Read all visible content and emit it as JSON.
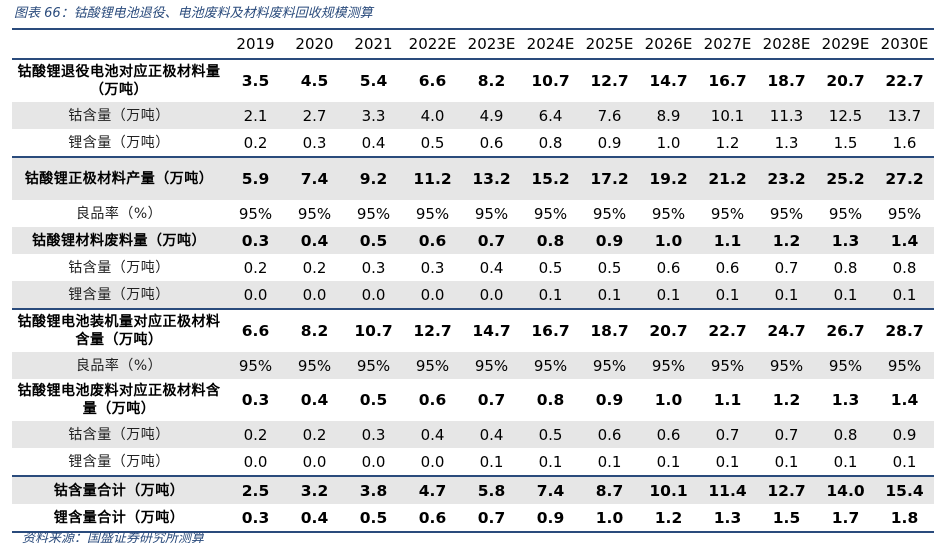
{
  "title": "图表 66：钴酸锂电池退役、电池废料及材料废料回收规模测算",
  "source": "资料来源：国盛证券研究所测算",
  "years": [
    "2019",
    "2020",
    "2021",
    "2022E",
    "2023E",
    "2024E",
    "2025E",
    "2026E",
    "2027E",
    "2028E",
    "2029E",
    "2030E"
  ],
  "rows": [
    {
      "label": "钴酸锂退役电池对应正极材料量（万吨）",
      "values": [
        "3.5",
        "4.5",
        "5.4",
        "6.6",
        "8.2",
        "10.7",
        "12.7",
        "14.7",
        "16.7",
        "18.7",
        "20.7",
        "22.7"
      ]
    },
    {
      "label": "钴含量（万吨）",
      "values": [
        "2.1",
        "2.7",
        "3.3",
        "4.0",
        "4.9",
        "6.4",
        "7.6",
        "8.9",
        "10.1",
        "11.3",
        "12.5",
        "13.7"
      ]
    },
    {
      "label": "锂含量（万吨）",
      "values": [
        "0.2",
        "0.3",
        "0.4",
        "0.5",
        "0.6",
        "0.8",
        "0.9",
        "1.0",
        "1.2",
        "1.3",
        "1.5",
        "1.6"
      ]
    },
    {
      "label": "钴酸锂正极材料产量（万吨）",
      "values": [
        "5.9",
        "7.4",
        "9.2",
        "11.2",
        "13.2",
        "15.2",
        "17.2",
        "19.2",
        "21.2",
        "23.2",
        "25.2",
        "27.2"
      ]
    },
    {
      "label": "良品率（%）",
      "values": [
        "95%",
        "95%",
        "95%",
        "95%",
        "95%",
        "95%",
        "95%",
        "95%",
        "95%",
        "95%",
        "95%",
        "95%"
      ]
    },
    {
      "label": "钴酸锂材料废料量（万吨）",
      "values": [
        "0.3",
        "0.4",
        "0.5",
        "0.6",
        "0.7",
        "0.8",
        "0.9",
        "1.0",
        "1.1",
        "1.2",
        "1.3",
        "1.4"
      ]
    },
    {
      "label": "钴含量（万吨）",
      "values": [
        "0.2",
        "0.2",
        "0.3",
        "0.3",
        "0.4",
        "0.5",
        "0.5",
        "0.6",
        "0.6",
        "0.7",
        "0.8",
        "0.8"
      ]
    },
    {
      "label": "锂含量（万吨）",
      "values": [
        "0.0",
        "0.0",
        "0.0",
        "0.0",
        "0.0",
        "0.1",
        "0.1",
        "0.1",
        "0.1",
        "0.1",
        "0.1",
        "0.1"
      ]
    },
    {
      "label": "钴酸锂电池装机量对应正极材料含量（万吨）",
      "values": [
        "6.6",
        "8.2",
        "10.7",
        "12.7",
        "14.7",
        "16.7",
        "18.7",
        "20.7",
        "22.7",
        "24.7",
        "26.7",
        "28.7"
      ]
    },
    {
      "label": "良品率（%）",
      "values": [
        "95%",
        "95%",
        "95%",
        "95%",
        "95%",
        "95%",
        "95%",
        "95%",
        "95%",
        "95%",
        "95%",
        "95%"
      ]
    },
    {
      "label": "钴酸锂电池废料对应正极材料含量（万吨）",
      "values": [
        "0.3",
        "0.4",
        "0.5",
        "0.6",
        "0.7",
        "0.8",
        "0.9",
        "1.0",
        "1.1",
        "1.2",
        "1.3",
        "1.4"
      ]
    },
    {
      "label": "钴含量（万吨）",
      "values": [
        "0.2",
        "0.2",
        "0.3",
        "0.4",
        "0.4",
        "0.5",
        "0.6",
        "0.6",
        "0.7",
        "0.7",
        "0.8",
        "0.9"
      ]
    },
    {
      "label": "锂含量（万吨）",
      "values": [
        "0.0",
        "0.0",
        "0.0",
        "0.0",
        "0.1",
        "0.1",
        "0.1",
        "0.1",
        "0.1",
        "0.1",
        "0.1",
        "0.1"
      ]
    },
    {
      "label": "钴含量合计（万吨）",
      "values": [
        "2.5",
        "3.2",
        "3.8",
        "4.7",
        "5.8",
        "7.4",
        "8.7",
        "10.1",
        "11.4",
        "12.7",
        "14.0",
        "15.4"
      ]
    },
    {
      "label": "锂含量合计（万吨）",
      "values": [
        "0.3",
        "0.4",
        "0.5",
        "0.6",
        "0.7",
        "0.9",
        "1.0",
        "1.2",
        "1.3",
        "1.5",
        "1.7",
        "1.8"
      ]
    }
  ]
}
